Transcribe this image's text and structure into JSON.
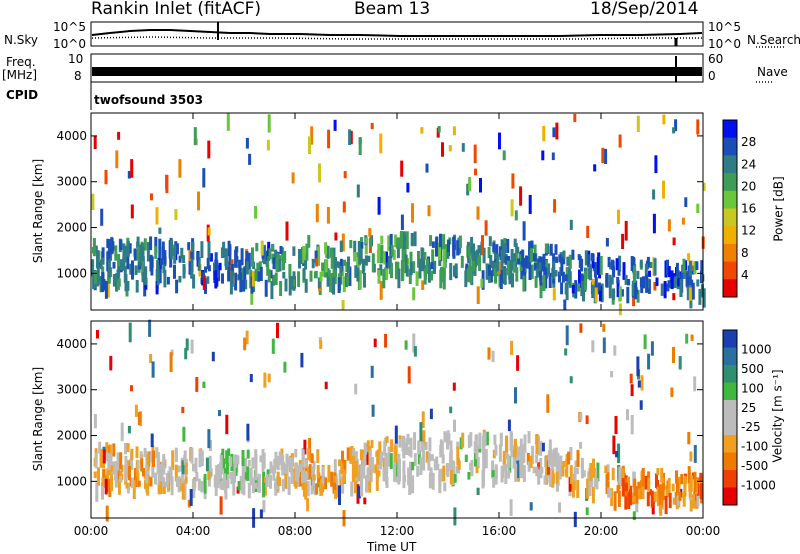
{
  "header": {
    "station": "Rankin Inlet (fitACF)",
    "beam": "Beam 13",
    "date": "18/Sep/2014"
  },
  "left_labels": {
    "nsky": "N.Sky",
    "freq": "Freq.",
    "freq_unit": "[MHz]",
    "cpid": "CPID"
  },
  "right_labels": {
    "nsearch": "N.Search",
    "nave": "Nave"
  },
  "noise_panel": {
    "left_ticks": [
      "10^5",
      "10^0"
    ],
    "right_ticks": [
      "10^5",
      "10^0"
    ]
  },
  "freq_panel": {
    "left_ticks": [
      "10",
      "8"
    ],
    "right_ticks": [
      "60",
      "0"
    ]
  },
  "cpid": {
    "text": "twofsound 3503"
  },
  "x_axis": {
    "label": "Time UT",
    "ticks": [
      "00:00",
      "04:00",
      "08:00",
      "12:00",
      "16:00",
      "20:00",
      "00:00"
    ]
  },
  "colors": {
    "power_scale": [
      "#0010f0",
      "#1a4fb8",
      "#2f7b86",
      "#3d9c55",
      "#68c83a",
      "#c8c820",
      "#f0b000",
      "#f08000",
      "#f04800",
      "#e80000"
    ],
    "velocity_scale": [
      "#1a3fb0",
      "#2a6fa0",
      "#2f8f70",
      "#40b840",
      "#bcbcbc",
      "#bcbcbc",
      "#f0a020",
      "#f07a00",
      "#f04000",
      "#e80000"
    ]
  },
  "chart_data": [
    {
      "type": "heatmap",
      "name": "power",
      "ylabel": "Slant Range [km]",
      "xlabel": "",
      "yticks": [
        "1000",
        "2000",
        "3000",
        "4000"
      ],
      "ylim": [
        200,
        4500
      ],
      "xlim_hours": [
        0,
        24
      ],
      "colorbar": {
        "label": "Power [dB]",
        "ticks": [
          "28",
          "24",
          "20",
          "16",
          "12",
          "8",
          "4"
        ],
        "range": [
          0,
          32
        ]
      },
      "description_values": [
        {
          "hour": 1,
          "range_km": [
            700,
            1700
          ],
          "value_db": 24
        },
        {
          "hour": 3,
          "range_km": [
            700,
            1700
          ],
          "value_db": 26
        },
        {
          "hour": 5,
          "range_km": [
            700,
            1600
          ],
          "value_db": 26
        },
        {
          "hour": 8,
          "range_km": [
            700,
            1500
          ],
          "value_db": 22
        },
        {
          "hour": 12,
          "range_km": [
            900,
            1800
          ],
          "value_db": 22
        },
        {
          "hour": 16,
          "range_km": [
            900,
            1700
          ],
          "value_db": 24
        },
        {
          "hour": 20,
          "range_km": [
            500,
            1400
          ],
          "value_db": 26
        },
        {
          "hour": 23,
          "range_km": [
            500,
            1200
          ],
          "value_db": 26
        }
      ]
    },
    {
      "type": "heatmap",
      "name": "velocity",
      "ylabel": "Slant Range [km]",
      "xlabel": "Time UT",
      "yticks": [
        "1000",
        "2000",
        "3000",
        "4000"
      ],
      "ylim": [
        200,
        4500
      ],
      "xlim_hours": [
        0,
        24
      ],
      "colorbar": {
        "label": "Velocity [m s⁻¹]",
        "ticks": [
          "1000",
          "500",
          "100",
          "25",
          "-25",
          "-100",
          "-500",
          "-1000"
        ],
        "range": [
          -1200,
          1200
        ]
      },
      "description_values": [
        {
          "hour": 2,
          "range_km": [
            800,
            1700
          ],
          "value_ms": -300
        },
        {
          "hour": 6,
          "range_km": [
            800,
            1600
          ],
          "value_ms": 200
        },
        {
          "hour": 9,
          "range_km": [
            800,
            1600
          ],
          "value_ms": -400
        },
        {
          "hour": 13,
          "range_km": [
            1000,
            2000
          ],
          "value_ms": 0
        },
        {
          "hour": 17,
          "range_km": [
            1100,
            2000
          ],
          "value_ms": 0
        },
        {
          "hour": 21,
          "range_km": [
            500,
            1200
          ],
          "value_ms": -500
        }
      ]
    }
  ]
}
